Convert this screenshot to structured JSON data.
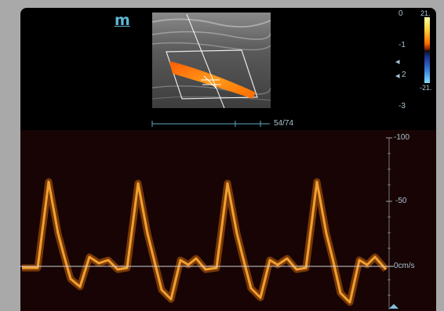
{
  "logo": {
    "text": "m"
  },
  "depth_scale": {
    "labels": [
      "0",
      "-1",
      "2",
      "-3"
    ],
    "markers": [
      "◂",
      "◂"
    ]
  },
  "color_scale": {
    "top_label": "21.",
    "bottom_label": "-21."
  },
  "sweep": {
    "label": "54/74"
  },
  "velocity_scale": {
    "labels": [
      "-100",
      "-50",
      "0cm/s"
    ]
  },
  "colors": {
    "panel": "#000000",
    "doppler_bg": "#180404",
    "scale_text": "#a9c3cf",
    "waveform": "#e08a1a",
    "baseline": "#cfcfcf"
  },
  "icons": [
    "logo-icon",
    "depth-marker-icon",
    "doppler-gate-icon",
    "baseline-marker-icon"
  ]
}
